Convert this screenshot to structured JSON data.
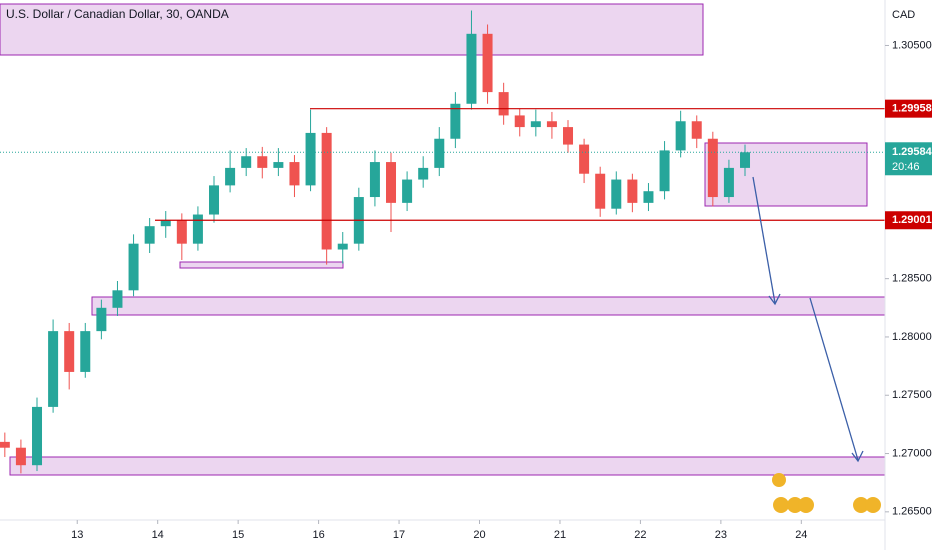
{
  "chart_data": {
    "type": "candlestick",
    "title": "U.S. Dollar / Canadian Dollar, 30, OANDA",
    "currency": "CAD",
    "countdown": "20:46",
    "x": [
      -0.9,
      -0.7,
      -0.5,
      -0.3,
      -0.1,
      0.1,
      0.3,
      0.5,
      0.7,
      0.9,
      1.1,
      1.3,
      1.5,
      1.7,
      1.9,
      2.1,
      2.3,
      2.5,
      2.7,
      2.9,
      3.1,
      3.3,
      3.5,
      3.7,
      3.9,
      4.1,
      4.3,
      4.5,
      4.7,
      4.9,
      5.1,
      5.3,
      5.5,
      5.7,
      5.9,
      6.1,
      6.3,
      6.5,
      6.7,
      6.9,
      7.1,
      7.3,
      7.5,
      7.7,
      7.9,
      8.1,
      8.3
    ],
    "open": [
      1.271,
      1.2705,
      1.269,
      1.274,
      1.2805,
      1.277,
      1.2805,
      1.2825,
      1.284,
      1.288,
      1.2895,
      1.29,
      1.288,
      1.2905,
      1.293,
      1.2945,
      1.2955,
      1.2945,
      1.295,
      1.293,
      1.2975,
      1.2875,
      1.288,
      1.292,
      1.295,
      1.2915,
      1.2935,
      1.2945,
      1.297,
      1.3,
      1.306,
      1.301,
      1.299,
      1.298,
      1.2985,
      1.298,
      1.2965,
      1.294,
      1.291,
      1.2935,
      1.2915,
      1.2925,
      1.296,
      1.2985,
      1.297,
      1.292,
      1.2945
    ],
    "high": [
      1.2718,
      1.2712,
      1.2748,
      1.2815,
      1.2812,
      1.2812,
      1.2832,
      1.2848,
      1.2888,
      1.2902,
      1.2908,
      1.2906,
      1.2912,
      1.2938,
      1.296,
      1.2962,
      1.2963,
      1.2962,
      1.2956,
      1.2995,
      1.298,
      1.289,
      1.2928,
      1.296,
      1.2958,
      1.2942,
      1.2955,
      1.298,
      1.301,
      1.308,
      1.3068,
      1.3018,
      1.2996,
      1.2995,
      1.2993,
      1.2986,
      1.297,
      1.2946,
      1.2942,
      1.294,
      1.2932,
      1.2968,
      1.2994,
      1.299,
      1.2976,
      1.2952,
      1.2965
    ],
    "low": [
      1.2697,
      1.2683,
      1.2685,
      1.2735,
      1.2755,
      1.2765,
      1.2798,
      1.2818,
      1.2835,
      1.2872,
      1.2885,
      1.2866,
      1.2874,
      1.2898,
      1.2924,
      1.2938,
      1.2936,
      1.2938,
      1.292,
      1.2925,
      1.2862,
      1.2863,
      1.2874,
      1.2912,
      1.289,
      1.2908,
      1.2928,
      1.2938,
      1.2962,
      1.2995,
      1.3,
      1.2982,
      1.2972,
      1.2972,
      1.297,
      1.2958,
      1.2932,
      1.2903,
      1.2905,
      1.2907,
      1.2908,
      1.2918,
      1.2954,
      1.2962,
      1.2912,
      1.2915,
      1.2938
    ],
    "close": [
      1.2705,
      1.269,
      1.274,
      1.2805,
      1.277,
      1.2805,
      1.2825,
      1.284,
      1.288,
      1.2895,
      1.29,
      1.288,
      1.2905,
      1.293,
      1.2945,
      1.2955,
      1.2945,
      1.295,
      1.293,
      1.2975,
      1.2875,
      1.288,
      1.292,
      1.295,
      1.2915,
      1.2935,
      1.2945,
      1.297,
      1.3,
      1.306,
      1.301,
      1.299,
      1.298,
      1.2985,
      1.298,
      1.2965,
      1.294,
      1.291,
      1.2935,
      1.2915,
      1.2925,
      1.296,
      1.2985,
      1.297,
      1.292,
      1.2945,
      1.29584
    ],
    "up_color": "#26a69a",
    "down_color": "#ef5350",
    "levels": [
      1.29958,
      1.29001
    ],
    "level_color": "#cc0000",
    "xlim": [
      -0.96,
      10.04
    ],
    "ylim": [
      1.2643,
      1.3089
    ],
    "xticks": [
      {
        "value": 0,
        "label": "13"
      },
      {
        "value": 1,
        "label": "14"
      },
      {
        "value": 2,
        "label": "15"
      },
      {
        "value": 3,
        "label": "16"
      },
      {
        "value": 4,
        "label": "17"
      },
      {
        "value": 5,
        "label": "20"
      },
      {
        "value": 6,
        "label": "21"
      },
      {
        "value": 7,
        "label": "22"
      },
      {
        "value": 8,
        "label": "23"
      },
      {
        "value": 9,
        "label": "24"
      }
    ],
    "yticks": [
      {
        "value": 1.305,
        "label": "1.30500"
      },
      {
        "value": 1.285,
        "label": "1.28500"
      },
      {
        "value": 1.28,
        "label": "1.28000"
      },
      {
        "value": 1.275,
        "label": "1.27500"
      },
      {
        "value": 1.27,
        "label": "1.27000"
      },
      {
        "value": 1.265,
        "label": "1.26500"
      }
    ]
  }
}
